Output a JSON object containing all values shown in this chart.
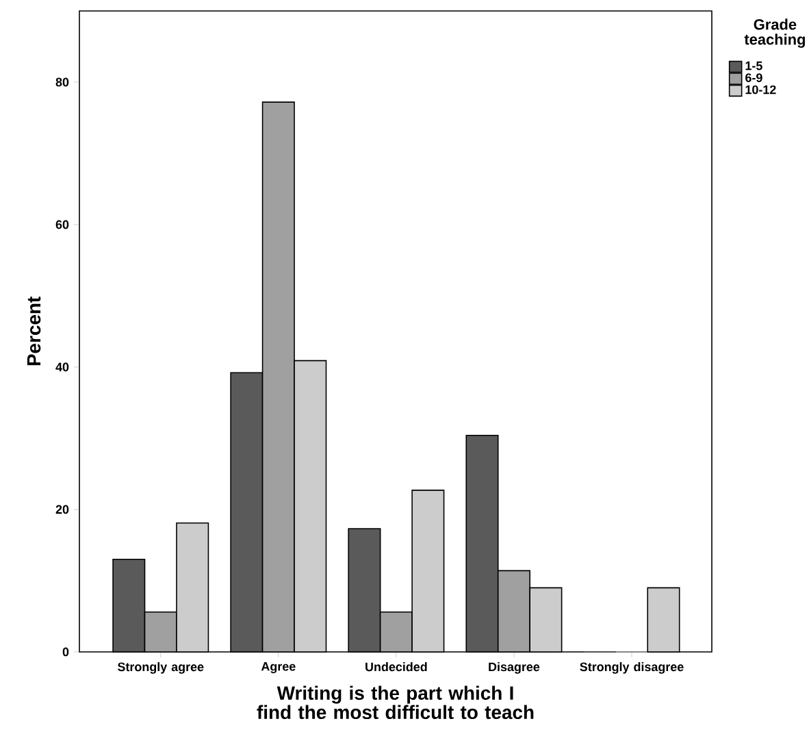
{
  "chart_data": {
    "type": "bar",
    "xlabel": "Writing is the part which I find the most difficult to teach",
    "ylabel": "Percent",
    "legend_title": "Grade teaching",
    "categories": [
      "Strongly agree",
      "Agree",
      "Undecided",
      "Disagree",
      "Strongly disagree"
    ],
    "series": [
      {
        "name": "1-5",
        "color": "#5a5a5a",
        "values": [
          13.0,
          39.2,
          17.3,
          30.4,
          0
        ]
      },
      {
        "name": "6-9",
        "color": "#a0a0a0",
        "values": [
          5.6,
          77.2,
          5.6,
          11.4,
          0
        ]
      },
      {
        "name": "10-12",
        "color": "#cccccc",
        "values": [
          18.1,
          40.9,
          22.7,
          9.0,
          9.0
        ]
      }
    ],
    "ylim": [
      0,
      90
    ],
    "yticks": [
      0,
      20,
      40,
      60,
      80
    ],
    "grid": false,
    "legend": "top right"
  }
}
